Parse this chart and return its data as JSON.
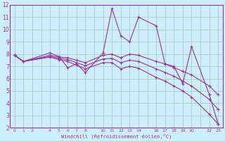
{
  "xlabel": "Windchill (Refroidissement éolien,°C)",
  "bg_color": "#cceeff",
  "grid_color": "#aaccbb",
  "line_color": "#993399",
  "xlim": [
    -0.5,
    23.5
  ],
  "ylim": [
    2,
    12
  ],
  "xtick_vals": [
    0,
    1,
    2,
    4,
    5,
    6,
    7,
    8,
    10,
    11,
    12,
    13,
    14,
    16,
    17,
    18,
    19,
    20,
    22,
    23
  ],
  "xtick_labels": [
    "0",
    "1",
    "2",
    "4",
    "5",
    "6",
    "7",
    "8",
    "10",
    "11",
    "12",
    "13",
    "14",
    "16",
    "17",
    "18",
    "19",
    "20",
    "22",
    "23"
  ],
  "ytick_vals": [
    2,
    3,
    4,
    5,
    6,
    7,
    8,
    9,
    10,
    11,
    12
  ],
  "ytick_labels": [
    "2",
    "3",
    "4",
    "5",
    "6",
    "7",
    "8",
    "9",
    "10",
    "11",
    "12"
  ],
  "lines": [
    {
      "x": [
        0,
        1,
        4,
        5,
        6,
        7,
        8,
        10,
        11,
        12,
        13,
        14,
        16,
        17,
        18,
        19,
        20,
        22,
        23
      ],
      "y": [
        7.9,
        7.4,
        8.1,
        7.8,
        6.9,
        7.2,
        6.5,
        8.1,
        11.7,
        9.5,
        9.0,
        11.0,
        10.3,
        7.2,
        7.0,
        5.6,
        8.6,
        4.7,
        2.3
      ]
    },
    {
      "x": [
        0,
        1,
        4,
        5,
        6,
        7,
        8,
        10,
        11,
        12,
        13,
        14,
        16,
        17,
        18,
        19,
        20,
        22,
        23
      ],
      "y": [
        7.9,
        7.4,
        7.9,
        7.75,
        7.7,
        7.5,
        7.3,
        7.9,
        8.0,
        7.7,
        8.0,
        7.9,
        7.4,
        7.2,
        6.9,
        6.6,
        6.3,
        5.4,
        4.7
      ]
    },
    {
      "x": [
        0,
        1,
        4,
        5,
        6,
        7,
        8,
        10,
        11,
        12,
        13,
        14,
        16,
        17,
        18,
        19,
        20,
        22,
        23
      ],
      "y": [
        7.9,
        7.4,
        7.8,
        7.65,
        7.55,
        7.3,
        7.05,
        7.6,
        7.65,
        7.3,
        7.5,
        7.4,
        6.8,
        6.5,
        6.2,
        5.8,
        5.4,
        4.3,
        3.5
      ]
    },
    {
      "x": [
        0,
        1,
        4,
        5,
        6,
        7,
        8,
        10,
        11,
        12,
        13,
        14,
        16,
        17,
        18,
        19,
        20,
        22,
        23
      ],
      "y": [
        7.9,
        7.4,
        7.75,
        7.55,
        7.4,
        7.1,
        6.8,
        7.3,
        7.3,
        6.8,
        7.0,
        6.85,
        6.1,
        5.8,
        5.4,
        5.0,
        4.5,
        3.1,
        2.3
      ]
    }
  ]
}
